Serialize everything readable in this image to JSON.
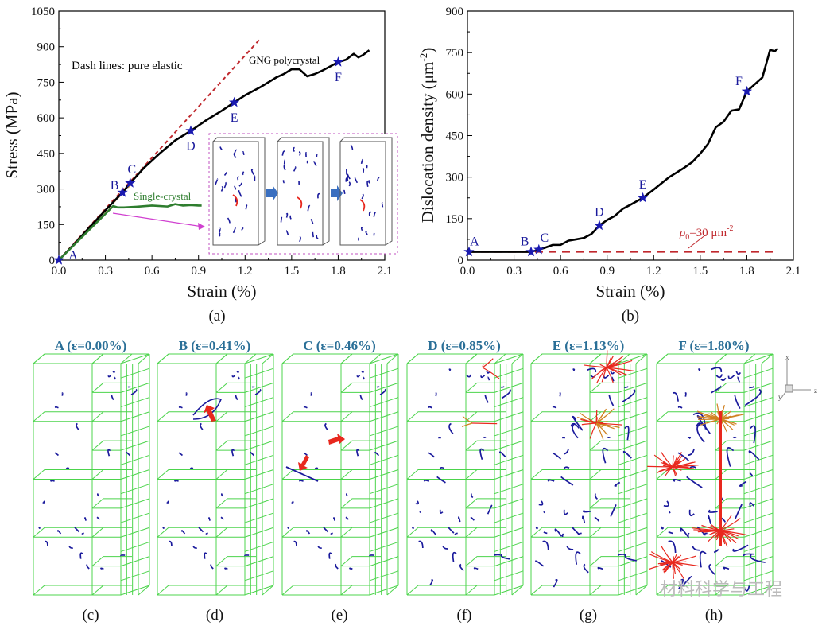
{
  "chart_data": [
    {
      "type": "line",
      "panel_label": "(a)",
      "xlabel": "Strain (%)",
      "ylabel": "Stress (MPa)",
      "xlim": [
        0,
        2.1
      ],
      "ylim": [
        0,
        1050
      ],
      "xticks": [
        "0.0",
        "0.3",
        "0.6",
        "0.9",
        "1.2",
        "1.5",
        "1.8",
        "2.1"
      ],
      "yticks": [
        "0",
        "150",
        "300",
        "450",
        "600",
        "750",
        "900",
        "1050"
      ],
      "annotation": "Dash lines: pure elastic",
      "series": [
        {
          "name": "GNG polycrystal",
          "color": "#000000",
          "x": [
            0,
            0.1,
            0.2,
            0.3,
            0.41,
            0.46,
            0.55,
            0.65,
            0.75,
            0.85,
            0.95,
            1.05,
            1.13,
            1.2,
            1.3,
            1.4,
            1.45,
            1.5,
            1.55,
            1.6,
            1.65,
            1.7,
            1.8,
            1.85,
            1.9,
            1.93,
            1.96,
            2.0
          ],
          "y": [
            0,
            68,
            140,
            210,
            285,
            325,
            390,
            450,
            505,
            545,
            590,
            630,
            665,
            695,
            730,
            770,
            785,
            805,
            805,
            775,
            785,
            800,
            835,
            845,
            870,
            855,
            865,
            885
          ]
        },
        {
          "name": "Single-crystal",
          "color": "#2e7d2e",
          "x": [
            0,
            0.1,
            0.2,
            0.3,
            0.35,
            0.38,
            0.42,
            0.5,
            0.6,
            0.7,
            0.75,
            0.8,
            0.85,
            0.9,
            0.92
          ],
          "y": [
            0,
            65,
            130,
            195,
            228,
            222,
            222,
            225,
            230,
            226,
            236,
            230,
            232,
            230,
            230
          ]
        }
      ],
      "elastic_lines": [
        {
          "color": "#c0282d",
          "x": [
            0,
            1.3
          ],
          "y": [
            0,
            935
          ]
        },
        {
          "color": "#d9a05a",
          "x": [
            0,
            0.48
          ],
          "y": [
            0,
            330
          ]
        }
      ],
      "markers": [
        {
          "label": "A",
          "x": 0.0,
          "y": 0
        },
        {
          "label": "B",
          "x": 0.41,
          "y": 285
        },
        {
          "label": "C",
          "x": 0.46,
          "y": 325
        },
        {
          "label": "D",
          "x": 0.85,
          "y": 545
        },
        {
          "label": "E",
          "x": 1.13,
          "y": 665
        },
        {
          "label": "F",
          "x": 1.8,
          "y": 835
        }
      ],
      "marker_color": "#1a1ab0",
      "grid": false
    },
    {
      "type": "line",
      "panel_label": "(b)",
      "xlabel": "Strain (%)",
      "ylabel_main": "Dislocation density (μm",
      "ylabel_sup": "-2",
      "ylabel_end": ")",
      "xlim": [
        0,
        2.1
      ],
      "ylim": [
        0,
        900
      ],
      "xticks": [
        "0.0",
        "0.3",
        "0.6",
        "0.9",
        "1.2",
        "1.5",
        "1.8",
        "2.1"
      ],
      "yticks": [
        "0",
        "150",
        "300",
        "450",
        "600",
        "750",
        "900"
      ],
      "series": [
        {
          "color": "#000000",
          "x": [
            0,
            0.41,
            0.46,
            0.5,
            0.55,
            0.6,
            0.65,
            0.7,
            0.75,
            0.8,
            0.85,
            0.9,
            0.95,
            1.0,
            1.05,
            1.13,
            1.2,
            1.3,
            1.4,
            1.45,
            1.5,
            1.55,
            1.6,
            1.65,
            1.7,
            1.75,
            1.8,
            1.85,
            1.9,
            1.93,
            1.95,
            1.98,
            2.0
          ],
          "y": [
            30,
            30,
            38,
            45,
            55,
            55,
            70,
            75,
            80,
            95,
            125,
            145,
            160,
            185,
            200,
            225,
            255,
            300,
            335,
            355,
            385,
            420,
            480,
            500,
            540,
            545,
            610,
            635,
            660,
            720,
            760,
            755,
            765
          ]
        }
      ],
      "reference_line": {
        "color": "#c0282d",
        "y": 30,
        "x": [
          0,
          2.0
        ]
      },
      "reference_label": {
        "rho": "ρ",
        "sub": "0",
        "text": "=30 μm",
        "sup": "-2"
      },
      "markers": [
        {
          "label": "A",
          "x": 0.01,
          "y": 30
        },
        {
          "label": "B",
          "x": 0.41,
          "y": 30
        },
        {
          "label": "C",
          "x": 0.46,
          "y": 38
        },
        {
          "label": "D",
          "x": 0.85,
          "y": 125
        },
        {
          "label": "E",
          "x": 1.13,
          "y": 225
        },
        {
          "label": "F",
          "x": 1.8,
          "y": 610
        }
      ],
      "marker_color": "#1a1ab0",
      "grid": false
    }
  ],
  "snapshots": [
    {
      "title": "A (ε=0.00%)",
      "label": "(c)",
      "level": 0
    },
    {
      "title": "B (ε=0.41%)",
      "label": "(d)",
      "level": 0
    },
    {
      "title": "C (ε=0.46%)",
      "label": "(e)",
      "level": 0
    },
    {
      "title": "D (ε=0.85%)",
      "label": "(f)",
      "level": 1
    },
    {
      "title": "E (ε=1.13%)",
      "label": "(g)",
      "level": 2
    },
    {
      "title": "F (ε=1.80%)",
      "label": "(h)",
      "level": 3
    }
  ],
  "axis_triad": {
    "x": "x",
    "y": "y",
    "z": "z"
  },
  "colors": {
    "wireframe": "#4cd44c",
    "dislocation": "#1a1a9c",
    "active_dislocation": "#e8281e",
    "title": "#2a6f97",
    "arrow": "#e8281e"
  },
  "watermark": "材料科学与工程"
}
